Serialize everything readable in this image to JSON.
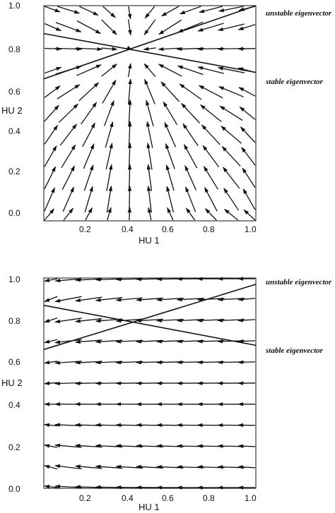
{
  "chart_data": [
    {
      "type": "quiver",
      "xlabel": "HU 1",
      "ylabel": "HU 2",
      "xlim": [
        0,
        1
      ],
      "ylim": [
        0,
        1
      ],
      "xticks": [
        "0.2",
        "0.4",
        "0.6",
        "0.8",
        "1.0"
      ],
      "yticks": [
        "0.0",
        "0.2",
        "0.4",
        "0.6",
        "0.8",
        "1.0"
      ],
      "fixed_point": [
        0.42,
        0.79
      ],
      "lines": [
        {
          "label": "unstable eigenvector",
          "points": [
            [
              0,
              0.66
            ],
            [
              1,
              1.0
            ]
          ]
        },
        {
          "label": "stable eigenvector",
          "points": [
            [
              0,
              0.87
            ],
            [
              1,
              0.69
            ]
          ]
        }
      ],
      "field": "attracting"
    },
    {
      "type": "quiver",
      "xlabel": "HU 1",
      "ylabel": "HU 2",
      "xlim": [
        0,
        1
      ],
      "ylim": [
        0,
        1
      ],
      "xticks": [
        "0.2",
        "0.4",
        "0.6",
        "0.8",
        "1.0"
      ],
      "yticks": [
        "0.0",
        "0.2",
        "0.4",
        "0.6",
        "0.8",
        "1.0"
      ],
      "fixed_point": [
        0.42,
        0.79
      ],
      "lines": [
        {
          "label": "unstable eigenvector",
          "points": [
            [
              0,
              0.66
            ],
            [
              1,
              0.97
            ]
          ]
        },
        {
          "label": "stable eigenvector",
          "points": [
            [
              0,
              0.87
            ],
            [
              1,
              0.68
            ]
          ]
        }
      ],
      "field": "leftward"
    }
  ]
}
